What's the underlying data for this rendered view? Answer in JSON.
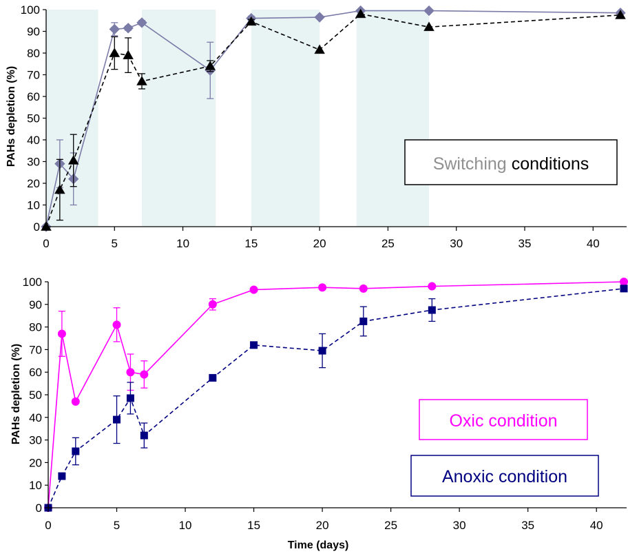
{
  "chart_data": [
    {
      "type": "line",
      "ylabel": "PAHs depletion (%)",
      "xlabel": "",
      "xlim": [
        0,
        42
      ],
      "ylim": [
        0,
        100
      ],
      "x_ticks": [
        0,
        5,
        10,
        15,
        20,
        25,
        30,
        35,
        40
      ],
      "y_ticks": [
        0,
        10,
        20,
        30,
        40,
        50,
        60,
        70,
        80,
        90,
        100
      ],
      "shaded_intervals": [
        [
          0,
          3.8
        ],
        [
          7,
          12.4
        ],
        [
          15,
          20
        ],
        [
          22.7,
          28
        ]
      ],
      "shade_color": "#e8f4f4",
      "legend": {
        "part1": "Switching",
        "part2": "conditions",
        "part1_color": "#909090",
        "part2_color": "#000000"
      },
      "series": [
        {
          "marker": "diamond",
          "color": "#7b7ba8",
          "line": "solid",
          "points": [
            {
              "x": 0,
              "y": 0,
              "err": 0
            },
            {
              "x": 1,
              "y": 29,
              "err": 11
            },
            {
              "x": 2,
              "y": 22,
              "err": 12
            },
            {
              "x": 5,
              "y": 91,
              "err": 3
            },
            {
              "x": 6,
              "y": 91.5,
              "err": 1
            },
            {
              "x": 7,
              "y": 94,
              "err": 1
            },
            {
              "x": 12,
              "y": 72,
              "err": 13
            },
            {
              "x": 15,
              "y": 96,
              "err": 1
            },
            {
              "x": 20,
              "y": 96.5,
              "err": 0
            },
            {
              "x": 23,
              "y": 99.5,
              "err": 0
            },
            {
              "x": 28,
              "y": 99.5,
              "err": 0
            },
            {
              "x": 42,
              "y": 98.5,
              "err": 0
            }
          ]
        },
        {
          "marker": "triangle",
          "color": "#000000",
          "line": "dashed",
          "points": [
            {
              "x": 0,
              "y": 0,
              "err": 0
            },
            {
              "x": 1,
              "y": 17,
              "err": 14
            },
            {
              "x": 2,
              "y": 30.5,
              "err": 12
            },
            {
              "x": 5,
              "y": 80,
              "err": 7.5
            },
            {
              "x": 6,
              "y": 79,
              "err": 8
            },
            {
              "x": 7,
              "y": 67,
              "err": 3.5
            },
            {
              "x": 12,
              "y": 74,
              "err": 2.5
            },
            {
              "x": 15,
              "y": 94.5,
              "err": 1
            },
            {
              "x": 20,
              "y": 81.5,
              "err": 0
            },
            {
              "x": 23,
              "y": 98,
              "err": 0
            },
            {
              "x": 28,
              "y": 92,
              "err": 0
            },
            {
              "x": 42,
              "y": 97.5,
              "err": 0
            }
          ]
        }
      ]
    },
    {
      "type": "line",
      "ylabel": "PAHs depletion (%)",
      "xlabel": "Time (days)",
      "xlim": [
        0,
        42
      ],
      "ylim": [
        0,
        100
      ],
      "x_ticks": [
        0,
        5,
        10,
        15,
        20,
        25,
        30,
        35,
        40
      ],
      "y_ticks": [
        0,
        10,
        20,
        30,
        40,
        50,
        60,
        70,
        80,
        90,
        100
      ],
      "series": [
        {
          "name": "Oxic condition",
          "marker": "circle",
          "color": "#ff00ff",
          "line": "solid",
          "points": [
            {
              "x": 0,
              "y": 0,
              "err": 0
            },
            {
              "x": 1,
              "y": 77,
              "err": 10
            },
            {
              "x": 2,
              "y": 47,
              "err": 0
            },
            {
              "x": 5,
              "y": 81,
              "err": 7.5
            },
            {
              "x": 6,
              "y": 60,
              "err": 8
            },
            {
              "x": 7,
              "y": 59,
              "err": 6
            },
            {
              "x": 12,
              "y": 90,
              "err": 2.5
            },
            {
              "x": 15,
              "y": 96.5,
              "err": 0
            },
            {
              "x": 20,
              "y": 97.5,
              "err": 0
            },
            {
              "x": 23,
              "y": 97,
              "err": 0
            },
            {
              "x": 28,
              "y": 98,
              "err": 0
            },
            {
              "x": 42,
              "y": 100,
              "err": 0
            }
          ]
        },
        {
          "name": "Anoxic condition",
          "marker": "square",
          "color": "#000080",
          "line": "dashed",
          "points": [
            {
              "x": 0,
              "y": 0,
              "err": 0
            },
            {
              "x": 1,
              "y": 14,
              "err": 0
            },
            {
              "x": 2,
              "y": 25,
              "err": 6
            },
            {
              "x": 5,
              "y": 39,
              "err": 10.5
            },
            {
              "x": 6,
              "y": 48.5,
              "err": 7
            },
            {
              "x": 7,
              "y": 32,
              "err": 5.5
            },
            {
              "x": 12,
              "y": 57.5,
              "err": 0
            },
            {
              "x": 15,
              "y": 72,
              "err": 0
            },
            {
              "x": 20,
              "y": 69.5,
              "err": 7.5
            },
            {
              "x": 23,
              "y": 82.5,
              "err": 6.5
            },
            {
              "x": 28,
              "y": 87.5,
              "err": 5
            },
            {
              "x": 42,
              "y": 97,
              "err": 0
            }
          ]
        }
      ]
    }
  ]
}
